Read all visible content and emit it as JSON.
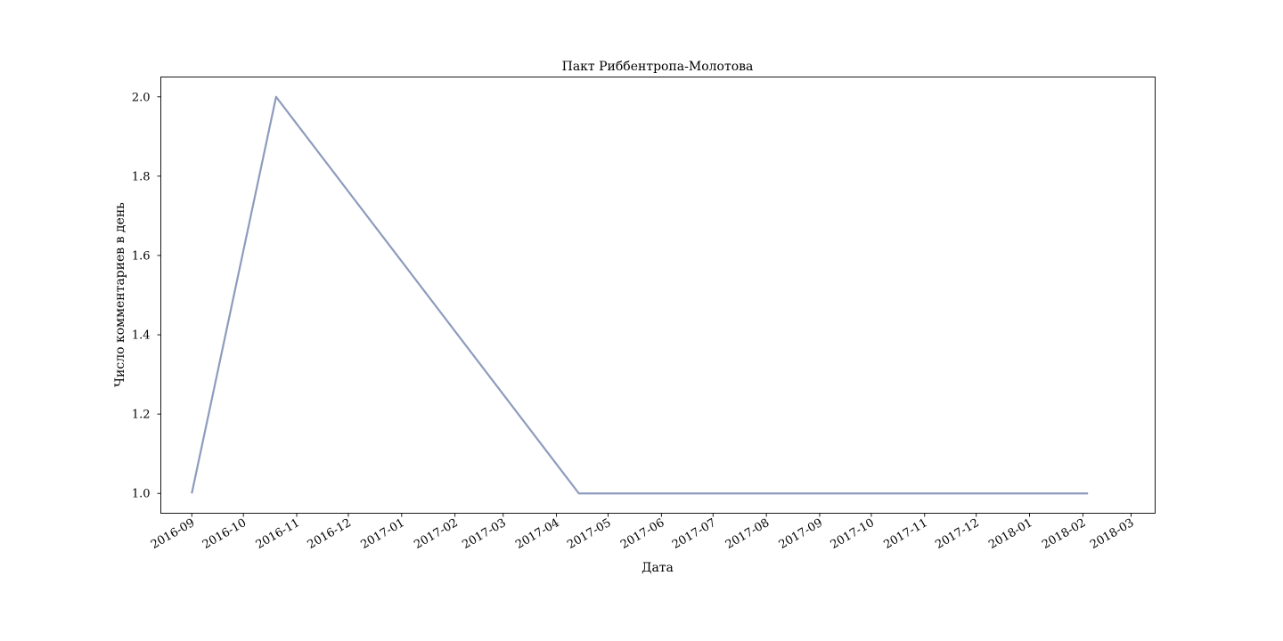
{
  "chart_data": {
    "type": "line",
    "title": "Пакт Риббентропа-Молотова",
    "xlabel": "Дата",
    "ylabel": "Число комментариев в день",
    "x_type": "date",
    "xlim": [
      "2016-08-14",
      "2018-03-15"
    ],
    "ylim": [
      0.95,
      2.05
    ],
    "grid": false,
    "x_ticks": [
      "2016-09",
      "2016-10",
      "2016-11",
      "2016-12",
      "2017-01",
      "2017-02",
      "2017-03",
      "2017-04",
      "2017-05",
      "2017-06",
      "2017-07",
      "2017-08",
      "2017-09",
      "2017-10",
      "2017-11",
      "2017-12",
      "2018-01",
      "2018-02",
      "2018-03"
    ],
    "y_ticks": [
      1.0,
      1.2,
      1.4,
      1.6,
      1.8,
      2.0
    ],
    "y_tick_labels": [
      "1.0",
      "1.2",
      "1.4",
      "1.6",
      "1.8",
      "2.0"
    ],
    "colors": {
      "line": "#8e9bbd"
    },
    "series": [
      {
        "x": [
          "2016-09-01",
          "2016-10-20",
          "2017-04-14",
          "2018-02-04"
        ],
        "y": [
          1,
          2,
          1,
          1
        ]
      }
    ]
  }
}
